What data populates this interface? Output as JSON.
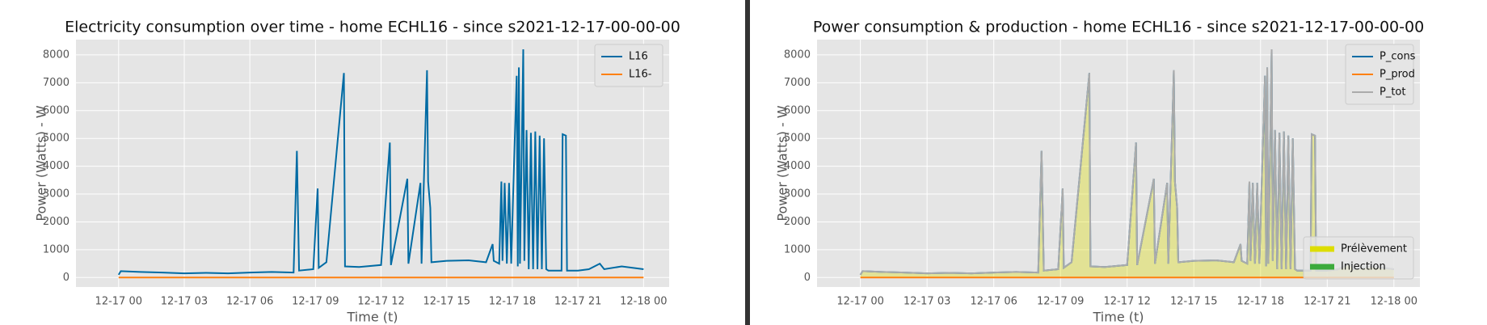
{
  "chart_data": [
    {
      "type": "line",
      "title": "Electricity consumption over time - home ECHL16 - since s2021-12-17-00-00-00",
      "xlabel": "Time (t)",
      "ylabel": "Power (Watts) - W",
      "grid": true,
      "legend": "upper right",
      "xlim": [
        -1.95,
        25.17
      ],
      "ylim": [
        -340,
        8550
      ],
      "xticks": [
        {
          "value": 0,
          "label": "12-17 00"
        },
        {
          "value": 3,
          "label": "12-17 03"
        },
        {
          "value": 6,
          "label": "12-17 06"
        },
        {
          "value": 9,
          "label": "12-17 09"
        },
        {
          "value": 12,
          "label": "12-17 12"
        },
        {
          "value": 15,
          "label": "12-17 15"
        },
        {
          "value": 18,
          "label": "12-17 18"
        },
        {
          "value": 21,
          "label": "12-17 21"
        },
        {
          "value": 24,
          "label": "12-18 00"
        }
      ],
      "yticks": [
        0,
        1000,
        2000,
        3000,
        4000,
        5000,
        6000,
        7000,
        8000
      ],
      "x": [
        0,
        0.1,
        1,
        2,
        3,
        4,
        5,
        6,
        7,
        8,
        8.15,
        8.25,
        8.9,
        9.1,
        9.15,
        9.5,
        10.3,
        10.35,
        11,
        12,
        12.4,
        12.45,
        13.2,
        13.25,
        13.8,
        13.85,
        14.1,
        14.15,
        14.25,
        14.3,
        15,
        16,
        16.8,
        17.1,
        17.15,
        17.4,
        17.5,
        17.55,
        17.65,
        17.75,
        17.85,
        17.95,
        18.05,
        18.2,
        18.25,
        18.3,
        18.35,
        18.5,
        18.55,
        18.65,
        18.75,
        18.85,
        18.95,
        19.05,
        19.15,
        19.25,
        19.35,
        19.45,
        19.55,
        19.65,
        20.25,
        20.3,
        20.45,
        20.5,
        21,
        21.5,
        22,
        22.2,
        23,
        24
      ],
      "series": [
        {
          "name": "L16",
          "color": "#006ba4",
          "values": [
            100,
            230,
            200,
            180,
            150,
            170,
            150,
            180,
            200,
            180,
            4550,
            250,
            300,
            3200,
            350,
            550,
            7350,
            400,
            380,
            450,
            4850,
            450,
            3550,
            500,
            3400,
            500,
            7450,
            3450,
            2500,
            550,
            600,
            620,
            550,
            1200,
            600,
            500,
            3450,
            600,
            3400,
            500,
            3400,
            500,
            3350,
            7250,
            400,
            7550,
            500,
            8200,
            600,
            5300,
            300,
            5200,
            300,
            5250,
            300,
            5100,
            300,
            5000,
            300,
            250,
            250,
            5150,
            5100,
            250,
            250,
            300,
            500,
            300,
            400,
            300
          ]
        },
        {
          "name": "L16-",
          "color": "#ff800e",
          "values": [
            0,
            0,
            0,
            0,
            0,
            0,
            0,
            0,
            0,
            0,
            0,
            0,
            0,
            0,
            0,
            0,
            0,
            0,
            0,
            0,
            0,
            0,
            0,
            0,
            0,
            0,
            0,
            0,
            0,
            0,
            0,
            0,
            0,
            0,
            0,
            0,
            0,
            0,
            0,
            0,
            0,
            0,
            0,
            0,
            0,
            0,
            0,
            0,
            0,
            0,
            0,
            0,
            0,
            0,
            0,
            0,
            0,
            0,
            0,
            0,
            0,
            0,
            0,
            0,
            0,
            0,
            0,
            0,
            0,
            0
          ]
        }
      ]
    },
    {
      "type": "line",
      "title": "Power consumption & production - home ECHL16 - since s2021-12-17-00-00-00",
      "xlabel": "Time (t)",
      "ylabel": "Power (Watts) - W",
      "grid": true,
      "legend": "upper right",
      "xlim": [
        -1.95,
        25.17
      ],
      "ylim": [
        -340,
        8550
      ],
      "xticks": [
        {
          "value": 0,
          "label": "12-17 00"
        },
        {
          "value": 3,
          "label": "12-17 03"
        },
        {
          "value": 6,
          "label": "12-17 06"
        },
        {
          "value": 9,
          "label": "12-17 09"
        },
        {
          "value": 12,
          "label": "12-17 12"
        },
        {
          "value": 15,
          "label": "12-17 15"
        },
        {
          "value": 18,
          "label": "12-17 18"
        },
        {
          "value": 21,
          "label": "12-17 21"
        },
        {
          "value": 24,
          "label": "12-18 00"
        }
      ],
      "yticks": [
        0,
        1000,
        2000,
        3000,
        4000,
        5000,
        6000,
        7000,
        8000
      ],
      "x": [
        0,
        0.1,
        1,
        2,
        3,
        4,
        5,
        6,
        7,
        8,
        8.15,
        8.25,
        8.9,
        9.1,
        9.15,
        9.5,
        10.3,
        10.35,
        11,
        12,
        12.4,
        12.45,
        13.2,
        13.25,
        13.8,
        13.85,
        14.1,
        14.15,
        14.25,
        14.3,
        15,
        16,
        16.8,
        17.1,
        17.15,
        17.4,
        17.5,
        17.55,
        17.65,
        17.75,
        17.85,
        17.95,
        18.05,
        18.2,
        18.25,
        18.3,
        18.35,
        18.5,
        18.55,
        18.65,
        18.75,
        18.85,
        18.95,
        19.05,
        19.15,
        19.25,
        19.35,
        19.45,
        19.55,
        19.65,
        20.25,
        20.3,
        20.45,
        20.5,
        21,
        21.5,
        22,
        22.2,
        23,
        24
      ],
      "series": [
        {
          "name": "P_cons",
          "color": "#006ba4",
          "values": [
            100,
            230,
            200,
            180,
            150,
            170,
            150,
            180,
            200,
            180,
            4550,
            250,
            300,
            3200,
            350,
            550,
            7350,
            400,
            380,
            450,
            4850,
            450,
            3550,
            500,
            3400,
            500,
            7450,
            3450,
            2500,
            550,
            600,
            620,
            550,
            1200,
            600,
            500,
            3450,
            600,
            3400,
            500,
            3400,
            500,
            3350,
            7250,
            400,
            7550,
            500,
            8200,
            600,
            5300,
            300,
            5200,
            300,
            5250,
            300,
            5100,
            300,
            5000,
            300,
            250,
            250,
            5150,
            5100,
            250,
            250,
            300,
            500,
            300,
            400,
            300
          ]
        },
        {
          "name": "P_prod",
          "color": "#ff800e",
          "values": [
            0,
            0,
            0,
            0,
            0,
            0,
            0,
            0,
            0,
            0,
            0,
            0,
            0,
            0,
            0,
            0,
            0,
            0,
            0,
            0,
            0,
            0,
            0,
            0,
            0,
            0,
            0,
            0,
            0,
            0,
            0,
            0,
            0,
            0,
            0,
            0,
            0,
            0,
            0,
            0,
            0,
            0,
            0,
            0,
            0,
            0,
            0,
            0,
            0,
            0,
            0,
            0,
            0,
            0,
            0,
            0,
            0,
            0,
            0,
            0,
            0,
            0,
            0,
            0,
            0,
            0,
            0,
            0,
            0,
            0
          ]
        },
        {
          "name": "P_tot",
          "color": "#ababab",
          "values": [
            100,
            230,
            200,
            180,
            150,
            170,
            150,
            180,
            200,
            180,
            4550,
            250,
            300,
            3200,
            350,
            550,
            7350,
            400,
            380,
            450,
            4850,
            450,
            3550,
            500,
            3400,
            500,
            7450,
            3450,
            2500,
            550,
            600,
            620,
            550,
            1200,
            600,
            500,
            3450,
            600,
            3400,
            500,
            3400,
            500,
            3350,
            7250,
            400,
            7550,
            500,
            8200,
            600,
            5300,
            300,
            5200,
            300,
            5250,
            300,
            5100,
            300,
            5000,
            300,
            250,
            250,
            5150,
            5100,
            250,
            250,
            300,
            500,
            300,
            400,
            300
          ]
        }
      ],
      "fills": [
        {
          "name": "Prélèvement",
          "color": "#dddd00"
        },
        {
          "name": "Injection",
          "color": "#3caa3c"
        }
      ]
    }
  ]
}
